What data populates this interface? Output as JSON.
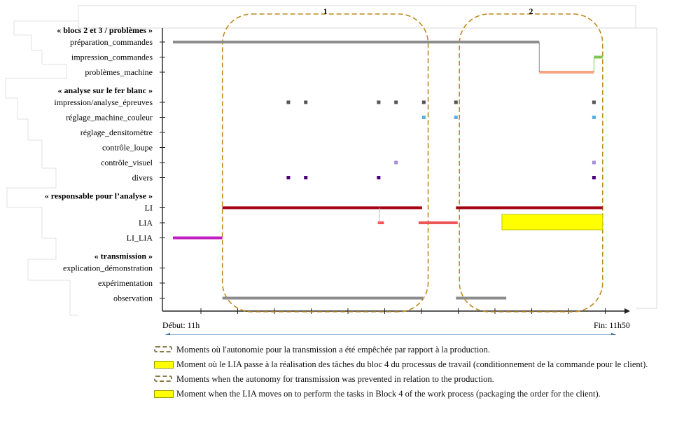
{
  "chart_data": {
    "type": "gantt",
    "x_start_label": "Début: 11h",
    "x_end_label": "Fin: 11h50",
    "duration_label": "50min",
    "x_range_min": [
      0,
      50
    ],
    "groups": [
      {
        "label": "« blocs 2 et 3 / problèmes »",
        "rows": [
          "préparation_commandes",
          "impression_commandes",
          "problèmes_machine"
        ]
      },
      {
        "label": "« analyse sur le fer blanc »",
        "rows": [
          "impression/analyse_épreuves",
          "réglage_machine_couleur",
          "réglage_densitomètre",
          "contrôle_loupe",
          "contrôle_visuel",
          "divers"
        ]
      },
      {
        "label": "« responsable pour l’analyse »",
        "rows": [
          "LI",
          "LIA",
          "LI_LIA"
        ]
      },
      {
        "label": "« transmission »",
        "rows": [
          "explication_démonstration",
          "expérimentation",
          "observation"
        ]
      }
    ],
    "regions": [
      {
        "label": "1",
        "start_min": 5.7,
        "end_min": 29.4
      },
      {
        "label": "2",
        "start_min": 33.0,
        "end_min": 49.5
      }
    ],
    "series": [
      {
        "row": "préparation_commandes",
        "color": "#8c8c8c",
        "segments": [
          [
            0,
            42.2
          ]
        ]
      },
      {
        "row": "impression_commandes",
        "color": "#7ec850",
        "segments": [
          [
            48.5,
            49.5
          ]
        ]
      },
      {
        "row": "problèmes_machine",
        "color": "#f4a582",
        "segments": [
          [
            42.2,
            48.5
          ]
        ]
      },
      {
        "row": "impression/analyse_épreuves",
        "color": "#555555",
        "points": [
          13.3,
          15.3,
          23.7,
          25.7,
          28.9,
          32.6,
          48.5
        ]
      },
      {
        "row": "réglage_machine_couleur",
        "color": "#5aaee0",
        "points": [
          28.9,
          32.6,
          48.5
        ]
      },
      {
        "row": "contrôle_visuel",
        "color": "#a58fd8",
        "points": [
          25.7,
          48.5
        ]
      },
      {
        "row": "divers",
        "color": "#4b0078",
        "points": [
          13.3,
          15.3,
          23.7,
          48.5
        ]
      },
      {
        "row": "LI",
        "color": "#a50010",
        "segments": [
          [
            5.7,
            28.7
          ],
          [
            32.6,
            49.5
          ]
        ]
      },
      {
        "row": "LIA",
        "color": "#ee5555",
        "segments": [
          [
            23.6,
            24.3
          ],
          [
            28.3,
            32.8
          ]
        ]
      },
      {
        "row": "LIA",
        "color": "#ffff00",
        "segments": [
          [
            37.9,
            49.5
          ]
        ],
        "boxed": true
      },
      {
        "row": "LI_LIA",
        "color": "#c020c0",
        "segments": [
          [
            0,
            5.7
          ]
        ]
      },
      {
        "row": "observation",
        "color": "#8c8c8c",
        "segments": [
          [
            5.7,
            28.8
          ],
          [
            32.6,
            38.4
          ]
        ]
      }
    ],
    "connectors": [
      {
        "x_min": 23.8,
        "from_row": "LI",
        "to_row": "LIA"
      }
    ],
    "ticks_min": [
      0,
      4.2,
      8.4,
      12.6,
      16.8,
      21,
      25.2,
      29.4,
      33.6,
      37.8,
      42,
      46.2,
      50
    ]
  },
  "legend": [
    {
      "swatch": "dashed-rounded",
      "text": "Moments où l'autonomie pour la transmission a été empêchée par rapport à la production."
    },
    {
      "swatch": "yellow",
      "text": "Moment où le LIA passe à la réalisation des tâches du bloc 4 du processus de travail (conditionnement de la commande pour le client)."
    },
    {
      "swatch": "dashed-rounded",
      "text": "Moments when the autonomy for transmission was prevented in relation to the production."
    },
    {
      "swatch": "yellow",
      "text": "Moment when the LIA moves on to perform the tasks in Block 4 of the work process (packaging the order for the client)."
    }
  ]
}
